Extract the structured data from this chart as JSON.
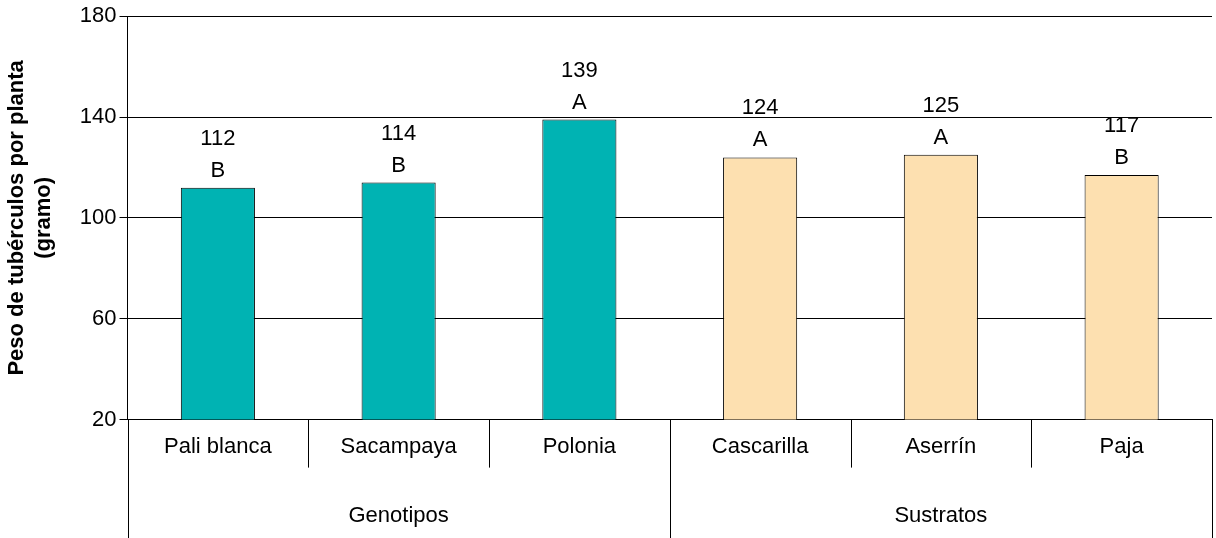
{
  "chart_data": {
    "type": "bar",
    "ylabel": "Peso de tubérculos por planta (gramo)",
    "categories": [
      "Pali blanca",
      "Sacampaya",
      "Polonia",
      "Cascarilla",
      "Aserrín",
      "Paja"
    ],
    "values": [
      112,
      114,
      139,
      124,
      125,
      117
    ],
    "colors": [
      "#00b3b3",
      "#00b3b3",
      "#00b3b3",
      "#fde0b0",
      "#fde0b0",
      "#fde0b0"
    ],
    "value_labels": [
      "112\nB",
      "114\nB",
      "139\nA",
      "124\nA",
      "125\nA",
      "117\nB"
    ],
    "annotations": [
      "Genotipos",
      "Sustratos"
    ],
    "ylim": [
      20,
      180
    ],
    "yticks": [
      20,
      60,
      100,
      140,
      180
    ],
    "grid": "y",
    "legend": false
  }
}
